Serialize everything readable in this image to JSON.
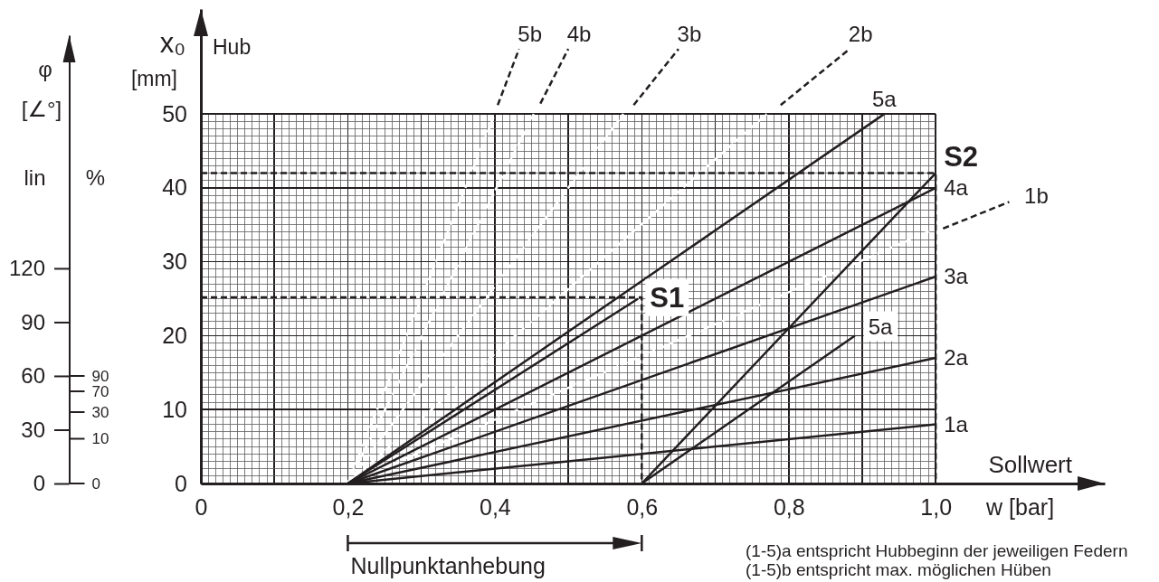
{
  "chart_data": {
    "type": "line",
    "xlabel": "w [bar]",
    "ylabel": "x₀ [mm]",
    "y2label": "φ [∠°]",
    "annotations": [
      "Hub",
      "Sollwert",
      "lin",
      "%",
      "0",
      "10",
      "30",
      "70",
      "90",
      "Nullpunktanhebung",
      "(1-5)a entspricht Hubbeginn der jeweiligen Federn",
      "(1-5)b entspricht max. möglichen Hüben",
      {
        "text": "S1",
        "x": 0.6,
        "y": 25.2
      },
      {
        "text": "S2",
        "x": 1,
        "y": 42
      }
    ],
    "xlim": [
      0,
      1.23
    ],
    "ylim": [
      0,
      64.2
    ],
    "xticks": [
      0,
      {
        "value": 0.01,
        "label": null
      },
      {
        "value": 0.02,
        "label": null
      },
      {
        "value": 0.03,
        "label": null
      },
      {
        "value": 0.04,
        "label": null
      },
      {
        "value": 0.05,
        "label": null
      },
      {
        "value": 0.06,
        "label": null
      },
      {
        "value": 0.07,
        "label": null
      },
      {
        "value": 0.08,
        "label": null
      },
      {
        "value": 0.09,
        "label": null
      },
      {
        "value": 0.1,
        "label": null
      },
      {
        "value": 0.11,
        "label": null
      },
      {
        "value": 0.12,
        "label": null
      },
      {
        "value": 0.13,
        "label": null
      },
      {
        "value": 0.14,
        "label": null
      },
      {
        "value": 0.15,
        "label": null
      },
      {
        "value": 0.16,
        "label": null
      },
      {
        "value": 0.17,
        "label": null
      },
      {
        "value": 0.18,
        "label": null
      },
      {
        "value": 0.19,
        "label": null
      },
      {
        "value": 0.2,
        "label": "0,2"
      },
      {
        "value": 0.21,
        "label": null
      },
      {
        "value": 0.22,
        "label": null
      },
      {
        "value": 0.23,
        "label": null
      },
      {
        "value": 0.24,
        "label": null
      },
      {
        "value": 0.25,
        "label": null
      },
      {
        "value": 0.26,
        "label": null
      },
      {
        "value": 0.27,
        "label": null
      },
      {
        "value": 0.28,
        "label": null
      },
      {
        "value": 0.29,
        "label": null
      },
      {
        "value": 0.3,
        "label": null
      },
      {
        "value": 0.31,
        "label": null
      },
      {
        "value": 0.32,
        "label": null
      },
      {
        "value": 0.33,
        "label": null
      },
      {
        "value": 0.34,
        "label": null
      },
      {
        "value": 0.35,
        "label": null
      },
      {
        "value": 0.36,
        "label": null
      },
      {
        "value": 0.37,
        "label": null
      },
      {
        "value": 0.38,
        "label": null
      },
      {
        "value": 0.39,
        "label": null
      },
      {
        "value": 0.4,
        "label": "0,4"
      },
      {
        "value": 0.41,
        "label": null
      },
      {
        "value": 0.42,
        "label": null
      },
      {
        "value": 0.43,
        "label": null
      },
      {
        "value": 0.44,
        "label": null
      },
      {
        "value": 0.45,
        "label": null
      },
      {
        "value": 0.46,
        "label": null
      },
      {
        "value": 0.47,
        "label": null
      },
      {
        "value": 0.48,
        "label": null
      },
      {
        "value": 0.49,
        "label": null
      },
      {
        "value": 0.5,
        "label": null
      },
      {
        "value": 0.51,
        "label": null
      },
      {
        "value": 0.52,
        "label": null
      },
      {
        "value": 0.53,
        "label": null
      },
      {
        "value": 0.54,
        "label": null
      },
      {
        "value": 0.55,
        "label": null
      },
      {
        "value": 0.56,
        "label": null
      },
      {
        "value": 0.57,
        "label": null
      },
      {
        "value": 0.58,
        "label": null
      },
      {
        "value": 0.59,
        "label": null
      },
      {
        "value": 0.6,
        "label": "0,6"
      },
      {
        "value": 0.61,
        "label": null
      },
      {
        "value": 0.62,
        "label": null
      },
      {
        "value": 0.63,
        "label": null
      },
      {
        "value": 0.64,
        "label": null
      },
      {
        "value": 0.65,
        "label": null
      },
      {
        "value": 0.66,
        "label": null
      },
      {
        "value": 0.67,
        "label": null
      },
      {
        "value": 0.68,
        "label": null
      },
      {
        "value": 0.69,
        "label": null
      },
      {
        "value": 0.7,
        "label": null
      },
      {
        "value": 0.71,
        "label": null
      },
      {
        "value": 0.72,
        "label": null
      },
      {
        "value": 0.73,
        "label": null
      },
      {
        "value": 0.74,
        "label": null
      },
      {
        "value": 0.75,
        "label": null
      },
      {
        "value": 0.76,
        "label": null
      },
      {
        "value": 0.77,
        "label": null
      },
      {
        "value": 0.78,
        "label": null
      },
      {
        "value": 0.79,
        "label": null
      },
      {
        "value": 0.8,
        "label": "0,8"
      },
      {
        "value": 0.81,
        "label": null
      },
      {
        "value": 0.82,
        "label": null
      },
      {
        "value": 0.83,
        "label": null
      },
      {
        "value": 0.84,
        "label": null
      },
      {
        "value": 0.85,
        "label": null
      },
      {
        "value": 0.86,
        "label": null
      },
      {
        "value": 0.87,
        "label": null
      },
      {
        "value": 0.88,
        "label": null
      },
      {
        "value": 0.89,
        "label": null
      },
      {
        "value": 0.9,
        "label": null
      },
      {
        "value": 0.91,
        "label": null
      },
      {
        "value": 0.92,
        "label": null
      },
      {
        "value": 0.93,
        "label": null
      },
      {
        "value": 0.94,
        "label": null
      },
      {
        "value": 0.95,
        "label": null
      },
      {
        "value": 0.96,
        "label": null
      },
      {
        "value": 0.97,
        "label": null
      },
      {
        "value": 0.98,
        "label": null
      },
      {
        "value": 0.99,
        "label": null
      },
      {
        "value": 1,
        "label": "1,0"
      }
    ],
    "yticks": [
      0,
      {
        "value": 1,
        "label": null
      },
      {
        "value": 2,
        "label": null
      },
      {
        "value": 3,
        "label": null
      },
      {
        "value": 4,
        "label": null
      },
      {
        "value": 5,
        "label": null
      },
      {
        "value": 6,
        "label": null
      },
      {
        "value": 7,
        "label": null
      },
      {
        "value": 8,
        "label": null
      },
      {
        "value": 9,
        "label": null
      },
      10,
      {
        "value": 11,
        "label": null
      },
      {
        "value": 12,
        "label": null
      },
      {
        "value": 13,
        "label": null
      },
      {
        "value": 14,
        "label": null
      },
      {
        "value": 15,
        "label": null
      },
      {
        "value": 16,
        "label": null
      },
      {
        "value": 17,
        "label": null
      },
      {
        "value": 18,
        "label": null
      },
      {
        "value": 19,
        "label": null
      },
      20,
      {
        "value": 21,
        "label": null
      },
      {
        "value": 22,
        "label": null
      },
      {
        "value": 23,
        "label": null
      },
      {
        "value": 24,
        "label": null
      },
      {
        "value": 25,
        "label": null
      },
      {
        "value": 26,
        "label": null
      },
      {
        "value": 27,
        "label": null
      },
      {
        "value": 28,
        "label": null
      },
      {
        "value": 29,
        "label": null
      },
      30,
      {
        "value": 31,
        "label": null
      },
      {
        "value": 32,
        "label": null
      },
      {
        "value": 33,
        "label": null
      },
      {
        "value": 34,
        "label": null
      },
      {
        "value": 35,
        "label": null
      },
      {
        "value": 36,
        "label": null
      },
      {
        "value": 37,
        "label": null
      },
      {
        "value": 38,
        "label": null
      },
      {
        "value": 39,
        "label": null
      },
      40,
      {
        "value": 41,
        "label": null
      },
      {
        "value": 42,
        "label": null
      },
      {
        "value": 43,
        "label": null
      },
      {
        "value": 44,
        "label": null
      },
      {
        "value": 45,
        "label": null
      },
      {
        "value": 46,
        "label": null
      },
      {
        "value": 47,
        "label": null
      },
      {
        "value": 48,
        "label": null
      },
      {
        "value": 49,
        "label": null
      },
      50
    ],
    "y2lim": [
      0,
      250
    ],
    "y2ticks": [
      0,
      30,
      60,
      90,
      120
    ],
    "grid": true,
    "line_style": "solid",
    "series": [
      {
        "color": "#ffffff",
        "line_style": "dashed",
        "x": [
          0.2,
          1
        ],
        "values": [
          0,
          34.5
        ]
      },
      {
        "color": "#ffffff",
        "line_style": "dashed",
        "x": [
          0.2,
          0.77
        ],
        "values": [
          0,
          50
        ]
      },
      {
        "color": "#ffffff",
        "line_style": "dashed",
        "x": [
          0.2,
          0.575
        ],
        "values": [
          0,
          50
        ]
      },
      {
        "color": "#ffffff",
        "line_style": "dashed",
        "x": [
          0.2,
          0.453
        ],
        "values": [
          0,
          50
        ]
      },
      {
        "color": "#ffffff",
        "line_style": "dashed",
        "x": [
          0.2,
          0.4
        ],
        "values": [
          0,
          50
        ]
      },
      {
        "color": "#231f20",
        "line_style": "dashed",
        "x": [
          0,
          0.6,
          0.6
        ],
        "values": [
          25.2,
          25.2,
          0
        ]
      },
      {
        "color": "#231f20",
        "line_style": "dashed",
        "x": [
          0,
          1,
          1
        ],
        "values": [
          42,
          42,
          0
        ]
      },
      {
        "name": "1a",
        "color": "#231f20",
        "x": [
          0.2,
          1
        ],
        "values": [
          0,
          8
        ]
      },
      {
        "name": "2a",
        "color": "#231f20",
        "x": [
          0.2,
          1
        ],
        "values": [
          0,
          17
        ]
      },
      {
        "name": "3a",
        "color": "#231f20",
        "x": [
          0.2,
          1
        ],
        "values": [
          0,
          28
        ]
      },
      {
        "name": "4a",
        "color": "#231f20",
        "x": [
          0.2,
          1
        ],
        "values": [
          0,
          40
        ]
      },
      {
        "name": "5a",
        "color": "#231f20",
        "x": [
          0.2,
          0.93
        ],
        "values": [
          0,
          50
        ]
      },
      {
        "color": "#231f20",
        "x": [
          0.2,
          0.595
        ],
        "values": [
          0,
          25
        ]
      },
      {
        "color": "#231f20",
        "x": [
          0.6,
          1
        ],
        "values": [
          0,
          42
        ]
      },
      {
        "name": "5a",
        "color": "#231f20",
        "x": [
          0.6,
          0.89
        ],
        "values": [
          0,
          20
        ]
      },
      {
        "name": "1b",
        "color": "#231f20",
        "line_style": "dashed",
        "x": [
          1.01,
          1.1
        ],
        "values": [
          34.5,
          38.1
        ]
      },
      {
        "name": "2b",
        "color": "#231f20",
        "line_style": "dashed",
        "x": [
          0.789,
          0.883
        ],
        "values": [
          51.2,
          58.8
        ]
      },
      {
        "name": "3b",
        "color": "#231f20",
        "line_style": "dashed",
        "x": [
          0.589,
          0.65
        ],
        "values": [
          51.2,
          58.8
        ]
      },
      {
        "name": "4b",
        "color": "#231f20",
        "line_style": "dashed",
        "x": [
          0.462,
          0.5
        ],
        "values": [
          51.4,
          58.8
        ]
      },
      {
        "name": "5b",
        "color": "#231f20",
        "line_style": "dashed",
        "x": [
          0.404,
          0.433
        ],
        "values": [
          51.2,
          58.8
        ]
      }
    ]
  }
}
